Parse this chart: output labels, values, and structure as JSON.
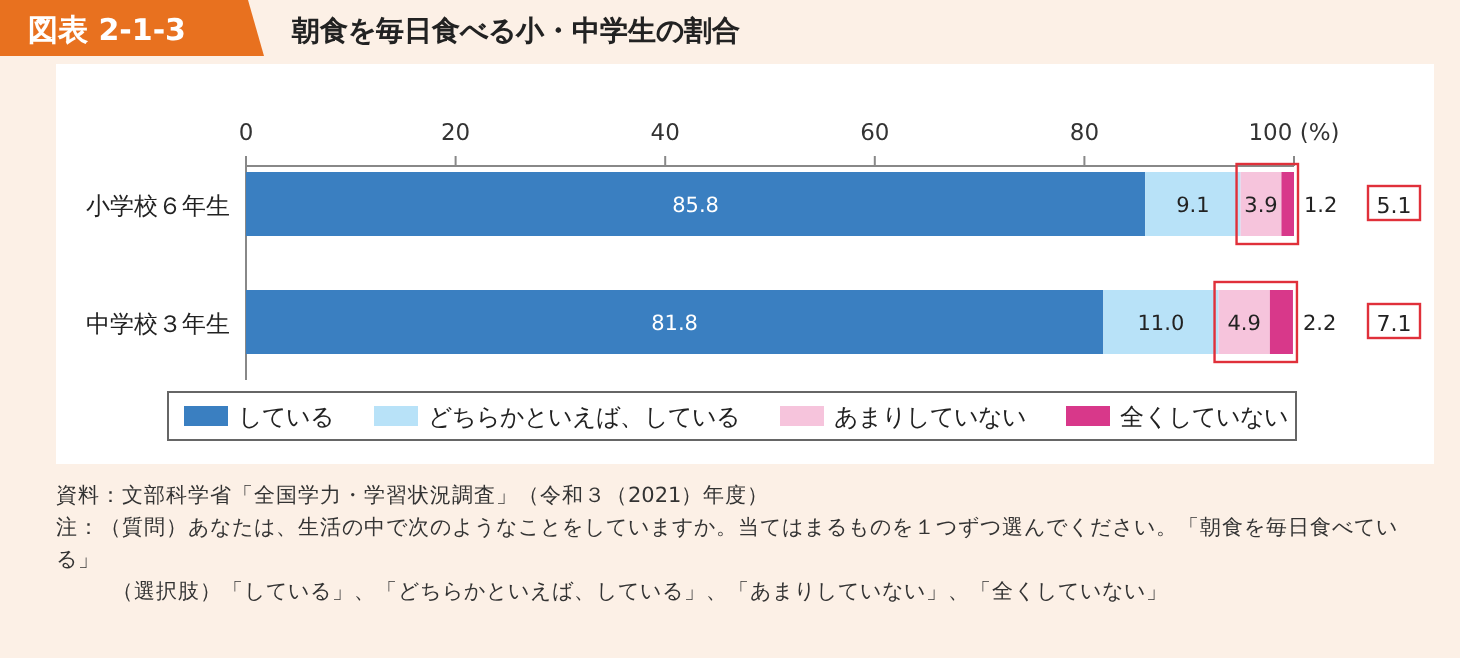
{
  "chart_data": {
    "type": "bar",
    "orientation": "horizontal",
    "stacked": true,
    "title": "朝食を毎日食べる小・中学生の割合",
    "subtitle": "図表 2-1-3",
    "categories": [
      "小学校６年生",
      "中学校３年生"
    ],
    "series": [
      {
        "name": "している",
        "color": "#3a7fc1",
        "values": [
          85.8,
          81.8
        ],
        "value_labels": [
          "85.8",
          "81.8"
        ]
      },
      {
        "name": "どちらかといえば、している",
        "color": "#b8e2f8",
        "values": [
          9.1,
          11.0
        ],
        "value_labels": [
          "9.1",
          "11.0"
        ]
      },
      {
        "name": "あまりしていない",
        "color": "#f6c4dc",
        "values": [
          3.9,
          4.9
        ],
        "value_labels": [
          "3.9",
          "4.9"
        ]
      },
      {
        "name": "全くしていない",
        "color": "#d8388a",
        "values": [
          1.2,
          2.2
        ],
        "value_labels": [
          "1.2",
          "2.2"
        ]
      }
    ],
    "xlim": [
      0,
      100
    ],
    "xticks": [
      0,
      20,
      40,
      60,
      80,
      {
        "value": 100,
        "label": "100 (%)"
      }
    ],
    "legend": "bottom",
    "annotations": [
      "5.1",
      "7.1",
      "資料：文部科学省「全国学力・学習状況調査」（令和３（2021）年度）",
      "注：（質問）あなたは、生活の中で次のようなことをしていますか。当てはまるものを１つずつ選んでください。「朝食を毎日食べている」",
      "（選択肢）「している」、「どちらかといえば、している」、「あまりしていない」、「全くしていない」"
    ]
  }
}
